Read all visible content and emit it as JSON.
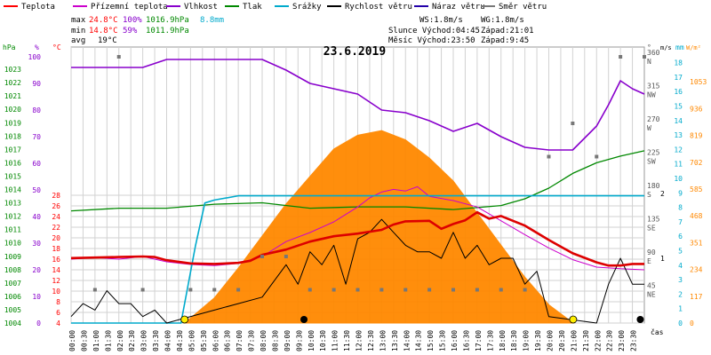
{
  "chart_data": {
    "type": "line",
    "title": "23.6.2019",
    "legend": [
      {
        "label": "Teplota",
        "color": "#ff0000"
      },
      {
        "label": "Přízemní teplota",
        "color": "#cc00cc"
      },
      {
        "label": "Vlhkost",
        "color": "#8800cc"
      },
      {
        "label": "Tlak",
        "color": "#008800"
      },
      {
        "label": "Srážky",
        "color": "#00aacc"
      },
      {
        "label": "Rychlost větru",
        "color": "#000000"
      },
      {
        "label": "Náraz větru",
        "color": "#2200aa"
      },
      {
        "label": "Směr větru",
        "color": "#777777"
      }
    ],
    "stats": {
      "max_label": "max",
      "max_temp": "24.8°C",
      "max_hum": "100%",
      "max_press": "1016.9hPa",
      "max_rain": "8.8mm",
      "min_label": "min",
      "min_temp": "14.8°C",
      "min_hum": "59%",
      "min_press": "1011.9hPa",
      "avg_label": "avg",
      "avg_temp": "19°C"
    },
    "wind_info": {
      "ws": "WS:1.8m/s",
      "wg": "WG:1.8m/s",
      "sun": "Slunce Východ:04:45",
      "sunset": "Západ:21:01",
      "moon": "Měsíc Východ:23:50",
      "moonset": "Západ:9:45"
    },
    "axis_units": {
      "hpa": "hPa",
      "pct": "%",
      "degc": "°C",
      "deg": "°",
      "ms": "m/s",
      "mm": "mm",
      "wm": "W/m²",
      "time": "čas"
    },
    "x_ticks": [
      "00:00",
      "00:30",
      "01:00",
      "01:30",
      "02:00",
      "02:30",
      "03:00",
      "03:30",
      "04:00",
      "04:30",
      "05:00",
      "05:30",
      "06:00",
      "06:30",
      "07:00",
      "07:30",
      "08:00",
      "08:30",
      "09:00",
      "09:30",
      "10:00",
      "10:30",
      "11:00",
      "11:30",
      "12:00",
      "12:30",
      "13:00",
      "13:30",
      "14:00",
      "14:30",
      "15:00",
      "15:30",
      "16:00",
      "16:30",
      "17:00",
      "17:30",
      "18:00",
      "18:30",
      "19:00",
      "19:30",
      "20:00",
      "20:30",
      "21:00",
      "21:30",
      "22:00",
      "22:30",
      "23:00",
      "23:30"
    ],
    "y_hpa_ticks": [
      "1004",
      "1005",
      "1006",
      "1007",
      "1008",
      "1009",
      "1010",
      "1011",
      "1012",
      "1013",
      "1014",
      "1015",
      "1016",
      "1017",
      "1018",
      "1019",
      "1020",
      "1021",
      "1022",
      "1023"
    ],
    "y_pct_ticks": [
      "0",
      "10",
      "20",
      "30",
      "40",
      "50",
      "60",
      "70",
      "80",
      "90",
      "100"
    ],
    "y_temp_ticks": [
      "4",
      "6",
      "8",
      "10",
      "12",
      "14",
      "16",
      "18",
      "20",
      "22",
      "24",
      "26",
      "28"
    ],
    "y_deg_ticks": [
      {
        "v": "360",
        "d": "N"
      },
      {
        "v": "315",
        "d": "NW"
      },
      {
        "v": "270",
        "d": "W"
      },
      {
        "v": "225",
        "d": "SW"
      },
      {
        "v": "180",
        "d": "S"
      },
      {
        "v": "135",
        "d": "SE"
      },
      {
        "v": "90",
        "d": "E"
      },
      {
        "v": "45",
        "d": "NE"
      }
    ],
    "y_ms_ticks": [
      "1",
      "2"
    ],
    "y_mm_ticks": [
      "0",
      "1",
      "2",
      "3",
      "4",
      "5",
      "6",
      "7",
      "8",
      "9",
      "10",
      "11",
      "12",
      "13",
      "14",
      "15",
      "16",
      "17",
      "18"
    ],
    "y_wm_ticks": [
      "0",
      "117",
      "234",
      "351",
      "468",
      "585",
      "702",
      "819",
      "936",
      "1053"
    ],
    "series": {
      "temperature_c": {
        "x": [
          0,
          1,
          2,
          3,
          3.5,
          4,
          5,
          6,
          7,
          7.5,
          8,
          9,
          10,
          11,
          12,
          13,
          13.5,
          14,
          15,
          15.5,
          16,
          16.5,
          17,
          17.5,
          18,
          19,
          20,
          21,
          22,
          22.5,
          23,
          23.5,
          24
        ],
        "y": [
          16.2,
          16.3,
          16.4,
          16.5,
          16.4,
          15.8,
          15.2,
          15.1,
          15.3,
          15.7,
          16.8,
          17.8,
          19.3,
          20.3,
          20.8,
          21.5,
          22.5,
          23.1,
          23.2,
          21.7,
          22.6,
          23.3,
          24.8,
          23.6,
          24.1,
          22.3,
          19.6,
          17.1,
          15.4,
          14.8,
          14.8,
          15.1,
          15.1
        ]
      },
      "ground_temperature_c": {
        "x": [
          0,
          1,
          2,
          3,
          4,
          5,
          6,
          7,
          8,
          9,
          10,
          11,
          12,
          12.5,
          13,
          13.5,
          14,
          14.5,
          15,
          16,
          17,
          18,
          19,
          20,
          21,
          22,
          23,
          24
        ],
        "y": [
          16.0,
          16.3,
          16.0,
          16.5,
          15.5,
          15.0,
          14.8,
          15.2,
          16.5,
          19.3,
          21.0,
          23.0,
          25.8,
          27.5,
          28.6,
          29.1,
          28.8,
          29.6,
          27.8,
          27.0,
          25.8,
          23.2,
          20.6,
          18.1,
          15.9,
          14.5,
          14.2,
          14.0
        ]
      },
      "humidity_pct": {
        "x": [
          0,
          1,
          2,
          3,
          4,
          5,
          6,
          7,
          8,
          9,
          10,
          11,
          12,
          13,
          14,
          15,
          16,
          17,
          18,
          19,
          20,
          21,
          22,
          22.5,
          23,
          23.5,
          24
        ],
        "y": [
          96,
          96,
          96,
          96,
          99,
          99,
          99,
          99,
          99,
          95,
          90,
          88,
          86,
          80,
          79,
          76,
          72,
          75,
          70,
          66,
          65,
          65,
          74,
          82,
          91,
          88,
          86
        ]
      },
      "pressure_hpa": {
        "x": [
          0,
          2,
          4,
          6,
          8,
          10,
          12,
          14,
          16,
          18,
          19,
          20,
          21,
          22,
          23,
          24
        ],
        "y": [
          1012.4,
          1012.6,
          1012.6,
          1012.9,
          1013.0,
          1012.6,
          1012.7,
          1012.7,
          1012.5,
          1012.8,
          1013.3,
          1014.1,
          1015.2,
          1016.0,
          1016.5,
          1016.9
        ]
      },
      "rain_mm": {
        "x": [
          0,
          4.6,
          5.2,
          5.6,
          6,
          7,
          8,
          9,
          10,
          12,
          14,
          16,
          18,
          20,
          22,
          24
        ],
        "y": [
          0,
          0,
          5.3,
          8.3,
          8.5,
          8.8,
          8.8,
          8.8,
          8.8,
          8.8,
          8.8,
          8.8,
          8.8,
          8.8,
          8.8,
          8.8
        ]
      },
      "solar_wm2": {
        "x": [
          4.75,
          6,
          7,
          8,
          9,
          10,
          11,
          12,
          13,
          14,
          15,
          16,
          17,
          18,
          19,
          20,
          21.02
        ],
        "y": [
          0,
          110,
          240,
          380,
          520,
          640,
          760,
          820,
          840,
          800,
          720,
          620,
          480,
          340,
          200,
          80,
          0
        ]
      },
      "wind_speed_ms": {
        "x": [
          0,
          0.5,
          1,
          1.5,
          2,
          2.5,
          3,
          3.5,
          4,
          6,
          7,
          8,
          9,
          9.5,
          10,
          10.5,
          11,
          11.5,
          12,
          12.5,
          13,
          13.5,
          14,
          14.5,
          15,
          15.5,
          16,
          16.5,
          17,
          17.5,
          18,
          18.5,
          19,
          19.5,
          20,
          22,
          22.5,
          23,
          23.5,
          24
        ],
        "y": [
          0.1,
          0.3,
          0.2,
          0.5,
          0.3,
          0.3,
          0.1,
          0.2,
          0,
          0.2,
          0.3,
          0.4,
          0.9,
          0.6,
          1.1,
          0.9,
          1.2,
          0.6,
          1.3,
          1.4,
          1.6,
          1.4,
          1.2,
          1.1,
          1.1,
          1.0,
          1.4,
          1.0,
          1.2,
          0.9,
          1.0,
          1.0,
          0.6,
          0.8,
          0.1,
          0,
          0.6,
          1.0,
          0.6,
          0.6
        ]
      },
      "wind_direction_deg": {
        "x": [
          1,
          2,
          3,
          5,
          6,
          7,
          8,
          9,
          10,
          11,
          12,
          13,
          14,
          15,
          16,
          17,
          18,
          19,
          20,
          21,
          22,
          23,
          24
        ],
        "y": [
          45,
          360,
          45,
          45,
          45,
          45,
          90,
          90,
          45,
          45,
          45,
          45,
          45,
          45,
          45,
          45,
          45,
          45,
          225,
          270,
          225,
          360,
          360
        ]
      }
    }
  }
}
